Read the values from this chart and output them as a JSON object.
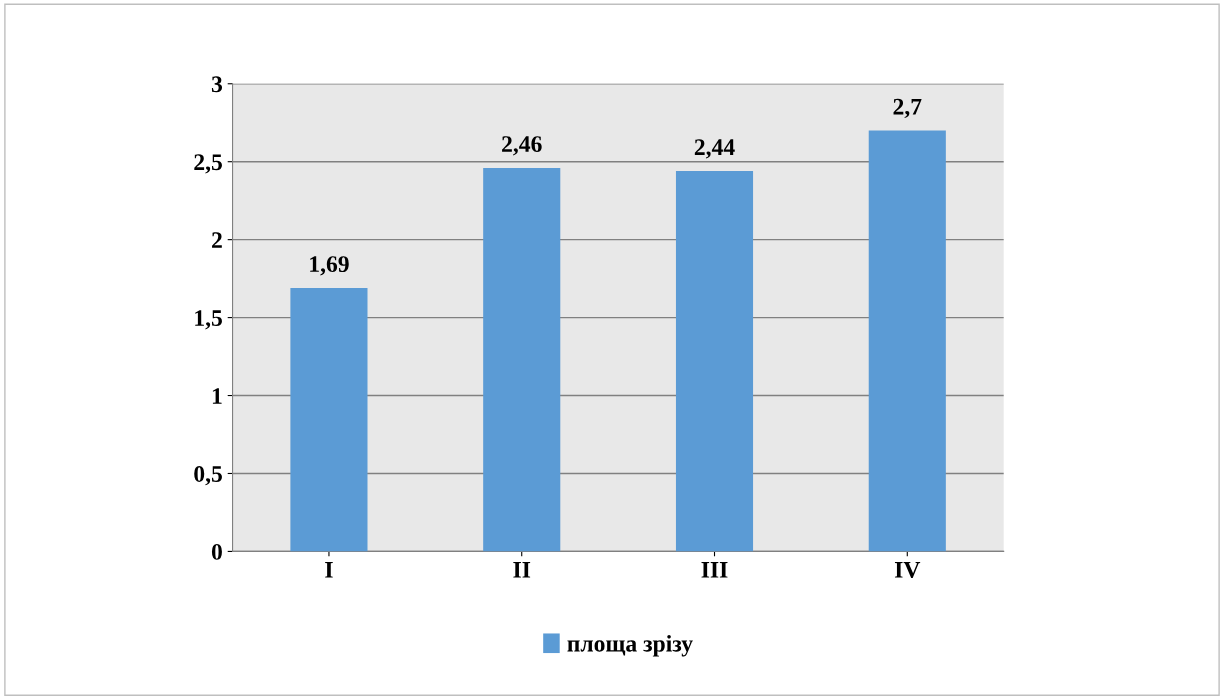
{
  "chart_data": {
    "type": "bar",
    "categories": [
      "I",
      "II",
      "III",
      "IV"
    ],
    "series": [
      {
        "name": "площа зрізу",
        "color": "#5b9bd5",
        "values": [
          1.69,
          2.46,
          2.44,
          2.7
        ]
      }
    ],
    "value_labels": [
      "1,69",
      "2,46",
      "2,44",
      "2,7"
    ],
    "ylim": [
      0,
      3
    ],
    "yticks": [
      0,
      {
        "value": 0.5,
        "label": "0,5"
      },
      1,
      {
        "value": 1.5,
        "label": "1,5"
      },
      2,
      {
        "value": 2.5,
        "label": "2,5"
      },
      3
    ],
    "grid": "y",
    "legend": "bottom"
  }
}
